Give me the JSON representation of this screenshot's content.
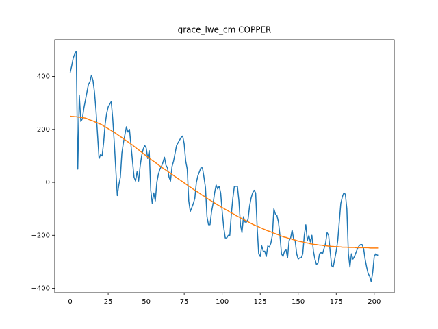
{
  "chart_data": {
    "type": "line",
    "title": "grace_lwe_cm COPPER",
    "x": [
      0,
      1,
      2,
      3,
      4,
      5,
      6,
      7,
      8,
      9,
      10,
      11,
      12,
      13,
      14,
      15,
      16,
      17,
      18,
      19,
      20,
      21,
      22,
      23,
      24,
      25,
      26,
      27,
      28,
      29,
      30,
      31,
      32,
      33,
      34,
      35,
      36,
      37,
      38,
      39,
      40,
      41,
      42,
      43,
      44,
      45,
      46,
      47,
      48,
      49,
      50,
      51,
      52,
      53,
      54,
      55,
      56,
      57,
      58,
      59,
      60,
      61,
      62,
      63,
      64,
      65,
      66,
      67,
      68,
      69,
      70,
      71,
      72,
      73,
      74,
      75,
      76,
      77,
      78,
      79,
      80,
      81,
      82,
      83,
      84,
      85,
      86,
      87,
      88,
      89,
      90,
      91,
      92,
      93,
      94,
      95,
      96,
      97,
      98,
      99,
      100,
      101,
      102,
      103,
      104,
      105,
      106,
      107,
      108,
      109,
      110,
      111,
      112,
      113,
      114,
      115,
      116,
      117,
      118,
      119,
      120,
      121,
      122,
      123,
      124,
      125,
      126,
      127,
      128,
      129,
      130,
      131,
      132,
      133,
      134,
      135,
      136,
      137,
      138,
      139,
      140,
      141,
      142,
      143,
      144,
      145,
      146,
      147,
      148,
      149,
      150,
      151,
      152,
      153,
      154,
      155,
      156,
      157,
      158,
      159,
      160,
      161,
      162,
      163,
      164,
      165,
      166,
      167,
      168,
      169,
      170,
      171,
      172,
      173,
      174,
      175,
      176,
      177,
      178,
      179,
      180,
      181,
      182,
      183,
      184,
      185,
      186,
      187,
      188,
      189,
      190,
      191,
      192,
      193,
      194,
      195,
      196,
      197,
      198,
      199,
      200,
      201,
      202,
      203
    ],
    "series": [
      {
        "color": "#1f77b4",
        "values": [
          415,
          440,
          470,
          485,
          495,
          50,
          330,
          230,
          240,
          280,
          310,
          340,
          370,
          380,
          405,
          385,
          340,
          270,
          180,
          90,
          105,
          100,
          150,
          220,
          260,
          285,
          295,
          305,
          240,
          150,
          50,
          -50,
          -10,
          20,
          110,
          150,
          180,
          210,
          190,
          200,
          140,
          80,
          20,
          5,
          40,
          5,
          60,
          100,
          125,
          140,
          130,
          90,
          120,
          -30,
          -80,
          -40,
          -70,
          0,
          30,
          50,
          60,
          75,
          95,
          65,
          55,
          20,
          5,
          60,
          80,
          110,
          140,
          150,
          160,
          170,
          175,
          145,
          80,
          50,
          -70,
          -110,
          -95,
          -80,
          -60,
          0,
          25,
          40,
          55,
          55,
          20,
          -20,
          -130,
          -160,
          -160,
          -110,
          -80,
          -40,
          -10,
          -25,
          -15,
          -40,
          -110,
          -170,
          -210,
          -210,
          -200,
          -200,
          -120,
          -60,
          -15,
          -15,
          -15,
          -70,
          -160,
          -190,
          -130,
          -150,
          -150,
          -140,
          -90,
          -60,
          -40,
          -30,
          -40,
          -170,
          -270,
          -280,
          -240,
          -260,
          -260,
          -280,
          -240,
          -245,
          -230,
          -200,
          -100,
          -120,
          -125,
          -150,
          -200,
          -270,
          -280,
          -260,
          -255,
          -285,
          -220,
          -210,
          -180,
          -215,
          -220,
          -270,
          -290,
          -285,
          -285,
          -270,
          -200,
          -160,
          -220,
          -200,
          -225,
          -200,
          -260,
          -290,
          -310,
          -305,
          -270,
          -265,
          -270,
          -250,
          -230,
          -190,
          -200,
          -260,
          -315,
          -320,
          -290,
          -260,
          -220,
          -150,
          -80,
          -55,
          -40,
          -45,
          -100,
          -270,
          -320,
          -270,
          -290,
          -280,
          -265,
          -250,
          -240,
          -235,
          -235,
          -250,
          -290,
          -320,
          -345,
          -355,
          -375,
          -340,
          -280,
          -270,
          -275,
          -275
        ]
      },
      {
        "color": "#ff7f0e",
        "values": [
          250,
          249,
          249,
          248,
          248,
          247,
          246,
          246,
          245,
          244,
          243,
          241,
          238,
          236,
          234,
          232,
          229,
          227,
          225,
          222,
          220,
          217,
          213,
          210,
          206,
          203,
          199,
          196,
          192,
          189,
          185,
          181,
          177,
          173,
          169,
          165,
          161,
          157,
          153,
          149,
          145,
          141,
          136,
          132,
          127,
          123,
          118,
          114,
          109,
          105,
          100,
          96,
          92,
          87,
          83,
          79,
          75,
          71,
          66,
          62,
          58,
          54,
          50,
          46,
          42,
          38,
          34,
          30,
          26,
          22,
          18,
          14,
          10,
          6,
          2,
          -2,
          -6,
          -10,
          -14,
          -18,
          -22,
          -26,
          -30,
          -33,
          -37,
          -41,
          -45,
          -49,
          -52,
          -56,
          -60,
          -64,
          -67,
          -71,
          -74,
          -78,
          -81,
          -85,
          -88,
          -92,
          -95,
          -98,
          -102,
          -105,
          -108,
          -112,
          -115,
          -118,
          -121,
          -125,
          -128,
          -131,
          -134,
          -137,
          -140,
          -143,
          -146,
          -149,
          -152,
          -155,
          -158,
          -161,
          -163,
          -166,
          -168,
          -171,
          -173,
          -176,
          -178,
          -181,
          -183,
          -185,
          -187,
          -190,
          -192,
          -194,
          -196,
          -198,
          -201,
          -203,
          -205,
          -207,
          -208,
          -210,
          -212,
          -213,
          -215,
          -217,
          -218,
          -220,
          -222,
          -223,
          -224,
          -225,
          -227,
          -228,
          -229,
          -230,
          -232,
          -233,
          -234,
          -235,
          -235,
          -236,
          -237,
          -237,
          -238,
          -239,
          -239,
          -240,
          -241,
          -241,
          -242,
          -242,
          -243,
          -243,
          -243,
          -244,
          -244,
          -245,
          -245,
          -245,
          -245,
          -246,
          -246,
          -246,
          -246,
          -246,
          -247,
          -247,
          -247,
          -247,
          -247,
          -247,
          -247,
          -247,
          -247,
          -248,
          -248,
          -248,
          -248,
          -248,
          -248,
          -248
        ]
      }
    ],
    "xlim": [
      -10.15,
      213.15
    ],
    "xticks": [
      0,
      25,
      50,
      75,
      100,
      125,
      150,
      175,
      200
    ],
    "ylim": [
      -416.8,
      538.8
    ],
    "yticks": [
      {
        "value": -400,
        "label": "−400"
      },
      {
        "value": -200,
        "label": "−200"
      },
      0,
      200,
      400
    ]
  }
}
